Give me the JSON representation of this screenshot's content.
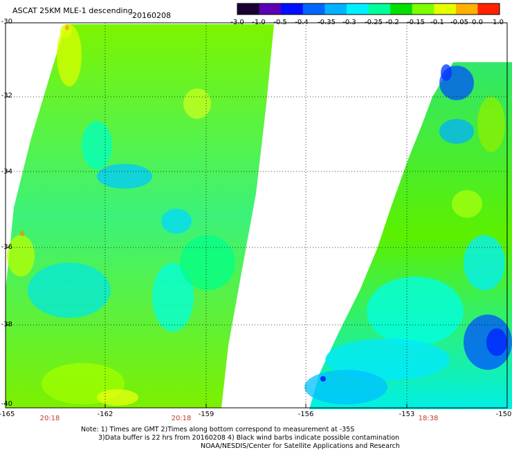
{
  "header": {
    "title": "ASCAT 25KM MLE-1 descending",
    "date": "20160208"
  },
  "colorbar": {
    "labels": [
      "-3.0",
      "-1.0",
      "-0.5",
      "-0.4",
      "-0.35",
      "-0.3",
      "-0.25",
      "-0.2",
      "-0.15",
      "-0.1",
      "-0.05",
      "0.0",
      "1.0"
    ],
    "colors": [
      "#1a0033",
      "#5b00b5",
      "#0010ff",
      "#0066ff",
      "#00b2ff",
      "#00f0ff",
      "#00ff9a",
      "#00e000",
      "#7cff00",
      "#e6ff00",
      "#ffb000",
      "#ff2000"
    ]
  },
  "map": {
    "lat_labels": [
      "-30",
      "-32",
      "-34",
      "-36",
      "-38",
      "-40"
    ],
    "lon_labels": [
      "-165",
      "-162",
      "-159",
      "-156",
      "-153",
      "-150"
    ],
    "time_labels": [
      "20:18",
      "20:18",
      "18:38"
    ],
    "time_color": "#c0392b"
  },
  "notes": {
    "line1": "Note: 1) Times are GMT 2)Times along bottom correspond to measurement at -35S",
    "line2": "3)Data buffer is 22 hrs from 20160208 4) Black wind barbs indicate possible contamination",
    "line3": "NOAA/NESDIS/Center for Satellite Applications and Research"
  }
}
